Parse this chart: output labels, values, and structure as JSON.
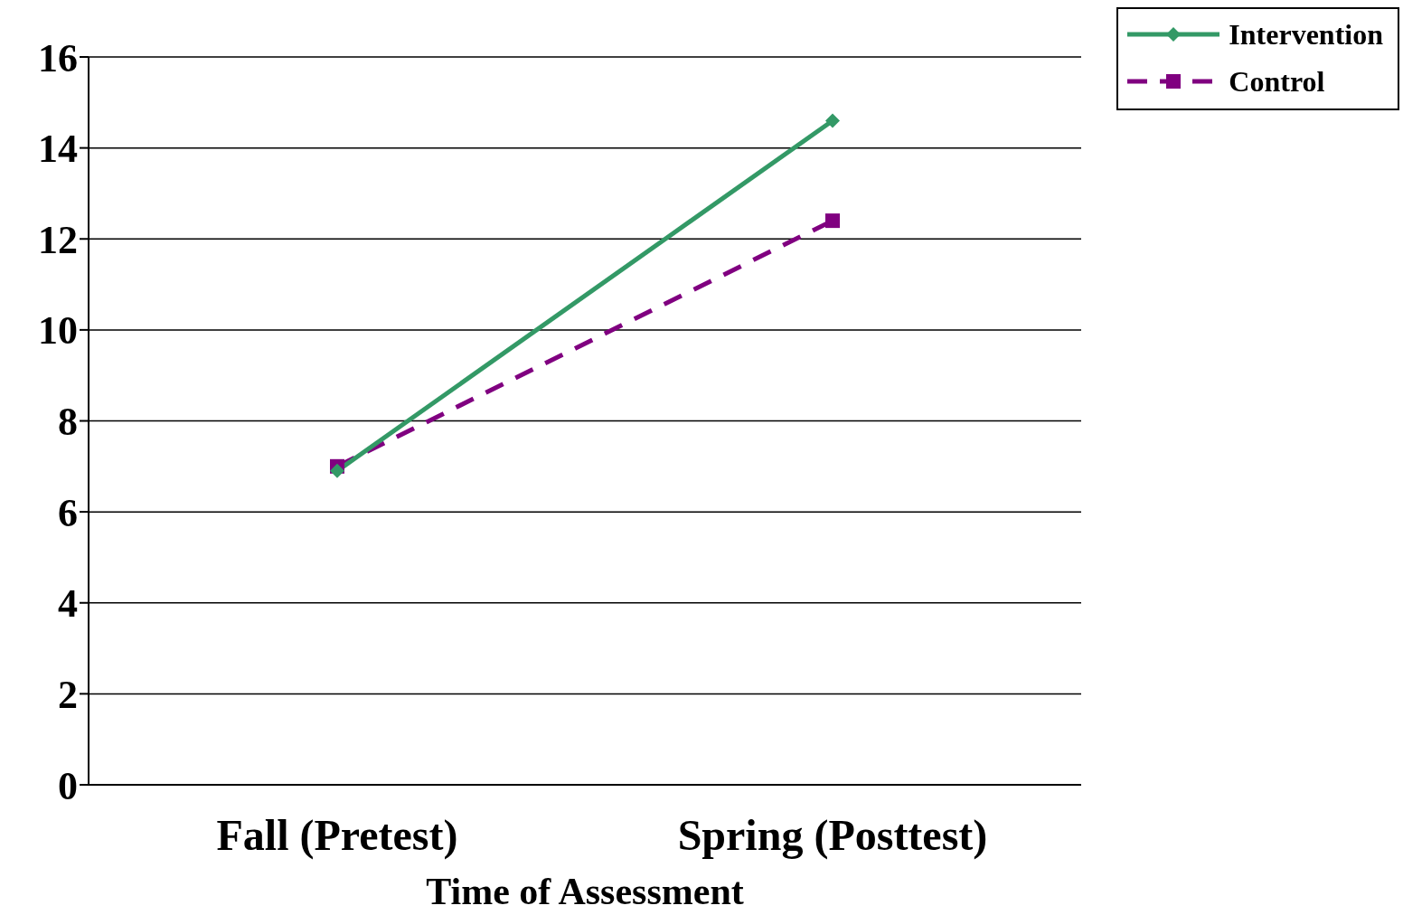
{
  "chart_data": {
    "type": "line",
    "xlabel": "Time of Assessment",
    "categories": [
      "Fall (Pretest)",
      "Spring (Posttest)"
    ],
    "series": [
      {
        "name": "Intervention",
        "color": "#339966",
        "values": [
          6.9,
          14.6
        ],
        "marker": "diamond",
        "line_style": "solid"
      },
      {
        "name": "Control",
        "color": "#800080",
        "values": [
          7.0,
          12.4
        ],
        "marker": "square",
        "line_style": "dashed"
      }
    ],
    "ylim": [
      0,
      16
    ],
    "yticks": [
      0,
      2,
      4,
      6,
      8,
      10,
      12,
      14,
      16
    ],
    "grid": "y",
    "legend": "top right"
  }
}
